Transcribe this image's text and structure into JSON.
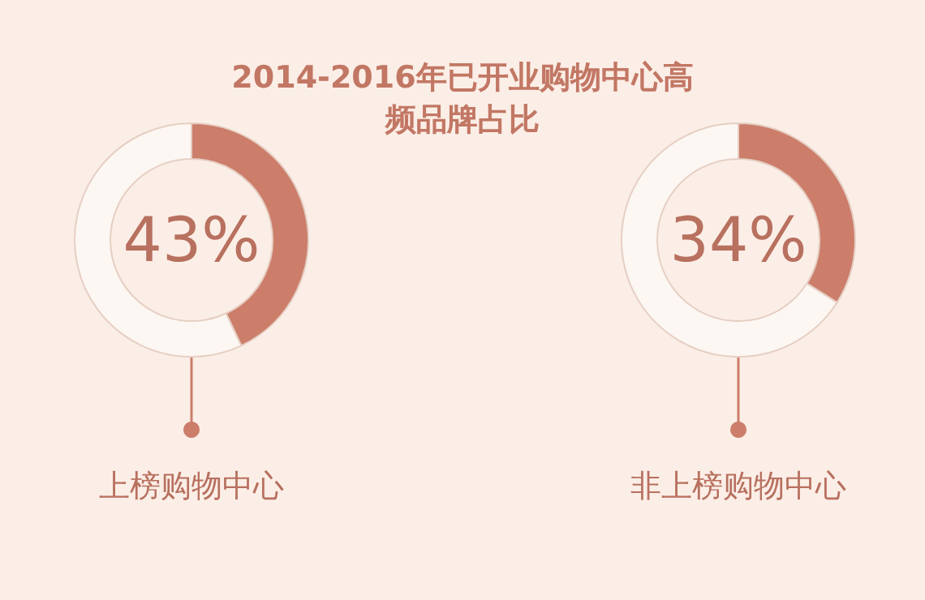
{
  "chart_data": [
    {
      "type": "donut",
      "title": "2014-2016年已开业购物中心高频品牌占比",
      "categories": [
        "上榜购物中心",
        null
      ],
      "values": [
        43,
        57
      ],
      "colors": [
        "#cc7e6b",
        "#fdf7f3"
      ],
      "value_labels": [
        "43%",
        null
      ]
    },
    {
      "type": "donut",
      "categories": [
        "非上榜购物中心",
        null
      ],
      "values": [
        34,
        66
      ],
      "colors": [
        "#cc7e6b",
        "#fdf7f3"
      ],
      "value_labels": [
        "34%",
        null
      ]
    }
  ]
}
